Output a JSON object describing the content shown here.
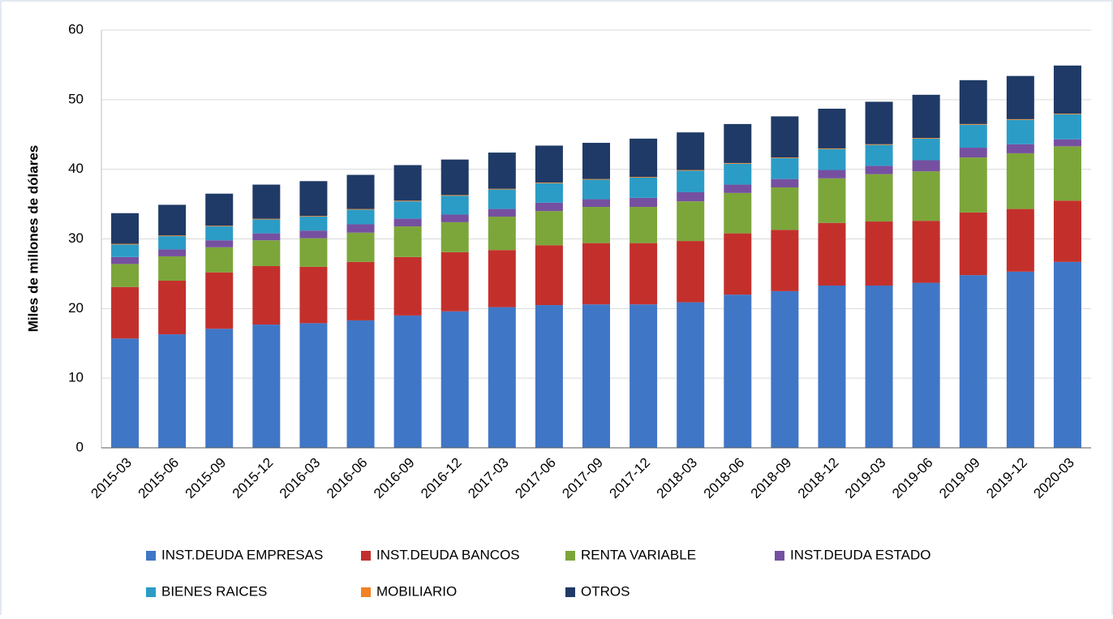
{
  "chart_data": {
    "type": "stacked_bar",
    "ylabel": "Miles de millones de dólares",
    "categories": [
      "2015-03",
      "2015-06",
      "2015-09",
      "2015-12",
      "2016-03",
      "2016-06",
      "2016-09",
      "2016-12",
      "2017-03",
      "2017-06",
      "2017-09",
      "2017-12",
      "2018-03",
      "2018-06",
      "2018-09",
      "2018-12",
      "2019-03",
      "2019-06",
      "2019-09",
      "2019-12",
      "2020-03"
    ],
    "series": [
      {
        "name": "INST.DEUDA EMPRESAS",
        "color": "#4076c6",
        "values": [
          15.7,
          16.3,
          17.1,
          17.7,
          17.9,
          18.3,
          19.0,
          19.6,
          20.2,
          20.5,
          20.6,
          20.6,
          20.9,
          22.0,
          22.5,
          23.3,
          23.3,
          23.7,
          24.8,
          25.3,
          26.7
        ]
      },
      {
        "name": "INST.DEUDA BANCOS",
        "color": "#c3302c",
        "values": [
          7.4,
          7.7,
          8.1,
          8.4,
          8.1,
          8.4,
          8.4,
          8.5,
          8.2,
          8.6,
          8.8,
          8.8,
          8.8,
          8.8,
          8.8,
          9.0,
          9.2,
          8.9,
          9.0,
          9.0,
          8.8
        ]
      },
      {
        "name": "RENTA VARIABLE",
        "color": "#7ca63a",
        "values": [
          3.3,
          3.5,
          3.6,
          3.7,
          4.1,
          4.2,
          4.4,
          4.3,
          4.8,
          4.9,
          5.2,
          5.2,
          5.7,
          5.8,
          6.1,
          6.4,
          6.8,
          7.1,
          7.9,
          8.0,
          7.8
        ]
      },
      {
        "name": "INST.DEUDA ESTADO",
        "color": "#7650a0",
        "values": [
          1.0,
          1.0,
          1.0,
          1.0,
          1.1,
          1.2,
          1.1,
          1.1,
          1.1,
          1.2,
          1.1,
          1.3,
          1.3,
          1.2,
          1.2,
          1.2,
          1.2,
          1.6,
          1.4,
          1.3,
          1.0
        ]
      },
      {
        "name": "BIENES RAICES",
        "color": "#2b9cc6",
        "values": [
          1.8,
          1.9,
          2.0,
          2.0,
          2.0,
          2.1,
          2.5,
          2.7,
          2.8,
          2.8,
          2.8,
          2.9,
          3.1,
          3.0,
          3.0,
          3.0,
          3.0,
          3.1,
          3.3,
          3.5,
          3.6
        ]
      },
      {
        "name": "MOBILIARIO",
        "color": "#f08324",
        "values": [
          0.1,
          0.1,
          0.1,
          0.1,
          0.1,
          0.1,
          0.1,
          0.1,
          0.1,
          0.1,
          0.1,
          0.1,
          0.1,
          0.1,
          0.1,
          0.1,
          0.1,
          0.1,
          0.1,
          0.1,
          0.1
        ]
      },
      {
        "name": "OTROS",
        "color": "#1f3a66",
        "values": [
          4.4,
          4.4,
          4.6,
          4.9,
          5.0,
          4.9,
          5.1,
          5.1,
          5.2,
          5.3,
          5.2,
          5.5,
          5.4,
          5.6,
          5.9,
          5.7,
          6.1,
          6.2,
          6.3,
          6.2,
          6.9
        ]
      }
    ],
    "ylim": [
      0,
      60
    ],
    "yticks": [
      0,
      10,
      20,
      30,
      40,
      50,
      60
    ],
    "grid": true
  }
}
